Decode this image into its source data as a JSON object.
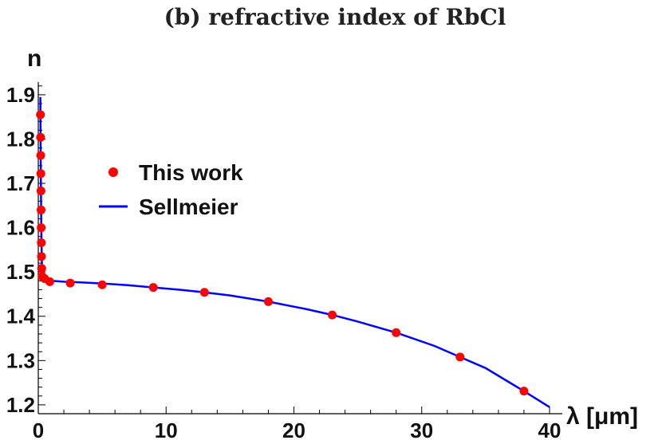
{
  "chart_data": {
    "type": "scatter",
    "title": "(b) refractive index of RbCl",
    "xlabel": "λ [μm]",
    "ylabel": "n",
    "xlim": [
      0,
      40.5
    ],
    "ylim": [
      1.18,
      1.925
    ],
    "x_ticks": [
      0,
      10,
      20,
      30,
      40
    ],
    "y_ticks": [
      1.2,
      1.3,
      1.4,
      1.5,
      1.6,
      1.7,
      1.8,
      1.9
    ],
    "grid": false,
    "legend_position": "center-left",
    "colors": {
      "points": "#ff0000",
      "line": "#0000ff",
      "axes": "#000000"
    },
    "series": [
      {
        "name": "This work",
        "kind": "scatter",
        "x": [
          0.17,
          0.18,
          0.19,
          0.2,
          0.21,
          0.22,
          0.23,
          0.24,
          0.25,
          0.27,
          0.3,
          0.5,
          0.9,
          2.5,
          5,
          9,
          13,
          18,
          23,
          28,
          33,
          38
        ],
        "y": [
          1.855,
          1.804,
          1.763,
          1.722,
          1.683,
          1.64,
          1.6,
          1.566,
          1.535,
          1.508,
          1.49,
          1.485,
          1.478,
          1.475,
          1.471,
          1.465,
          1.454,
          1.433,
          1.403,
          1.363,
          1.308,
          1.231
        ]
      },
      {
        "name": "Sellmeier",
        "kind": "line",
        "x": [
          0.16,
          0.17,
          0.18,
          0.19,
          0.2,
          0.22,
          0.24,
          0.26,
          0.28,
          0.3,
          0.35,
          0.4,
          0.5,
          0.7,
          1,
          2,
          3,
          5,
          7,
          9,
          11,
          13,
          15,
          18,
          21,
          23,
          25,
          28,
          31,
          33,
          35,
          38,
          40
        ],
        "y": [
          1.895,
          1.855,
          1.804,
          1.763,
          1.722,
          1.66,
          1.595,
          1.55,
          1.52,
          1.5,
          1.492,
          1.488,
          1.485,
          1.482,
          1.48,
          1.478,
          1.477,
          1.474,
          1.47,
          1.465,
          1.46,
          1.454,
          1.447,
          1.433,
          1.416,
          1.403,
          1.388,
          1.363,
          1.333,
          1.308,
          1.283,
          1.231,
          1.195
        ]
      }
    ]
  }
}
